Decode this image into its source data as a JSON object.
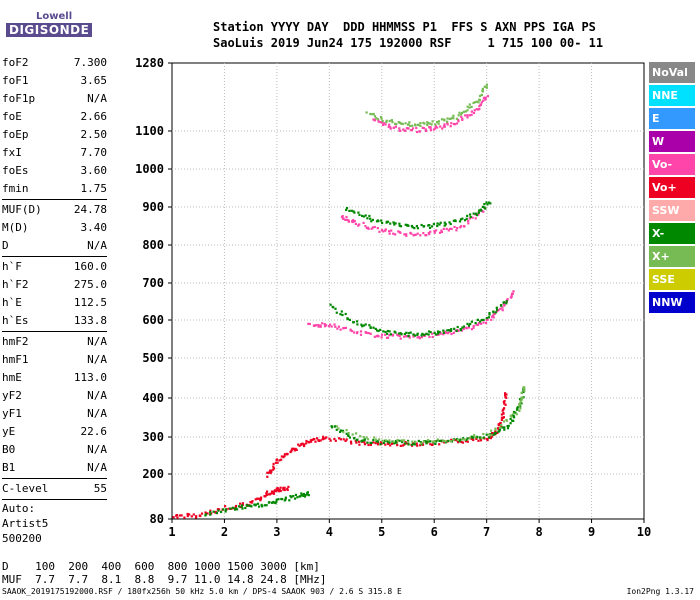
{
  "logo": {
    "line1": "Lowell",
    "line2": "DIGISONDE"
  },
  "header": {
    "line1": "Station YYYY DAY  DDD HHMMSS P1  FFS S AXN PPS IGA PS",
    "line2": "SaoLuis 2019 Jun24 175 192000 RSF     1 715 100 00- 11"
  },
  "params": [
    {
      "k": "foF2",
      "v": "7.300"
    },
    {
      "k": "foF1",
      "v": "3.65"
    },
    {
      "k": "foF1p",
      "v": "N/A"
    },
    {
      "k": "foE",
      "v": "2.66"
    },
    {
      "k": "foEp",
      "v": "2.50"
    },
    {
      "k": "fxI",
      "v": "7.70"
    },
    {
      "k": "foEs",
      "v": "3.60"
    },
    {
      "k": "fmin",
      "v": "1.75"
    },
    {
      "k": "MUF(D)",
      "v": "24.78"
    },
    {
      "k": "M(D)",
      "v": "3.40"
    },
    {
      "k": "D",
      "v": "N/A"
    },
    {
      "k": "h`F",
      "v": "160.0"
    },
    {
      "k": "h`F2",
      "v": "275.0"
    },
    {
      "k": "h`E",
      "v": "112.5"
    },
    {
      "k": "h`Es",
      "v": "133.8"
    },
    {
      "k": "hmF2",
      "v": "N/A"
    },
    {
      "k": "hmF1",
      "v": "N/A"
    },
    {
      "k": "hmE",
      "v": "113.0"
    },
    {
      "k": "yF2",
      "v": "N/A"
    },
    {
      "k": "yF1",
      "v": "N/A"
    },
    {
      "k": "yE",
      "v": "22.6"
    },
    {
      "k": "B0",
      "v": "N/A"
    },
    {
      "k": "B1",
      "v": "N/A"
    },
    {
      "k": "C-level",
      "v": "55"
    }
  ],
  "auto": {
    "l1": "Auto:",
    "l2": "Artist5",
    "l3": "500200"
  },
  "legend": [
    {
      "label": "NoVal",
      "color": "#888888"
    },
    {
      "label": "NNE",
      "color": "#00e0ff"
    },
    {
      "label": "E",
      "color": "#3399ff"
    },
    {
      "label": "W",
      "color": "#aa00aa"
    },
    {
      "label": "Vo-",
      "color": "#ff44aa"
    },
    {
      "label": "Vo+",
      "color": "#ee0022"
    },
    {
      "label": "SSW",
      "color": "#ffaaaa"
    },
    {
      "label": "X-",
      "color": "#008800"
    },
    {
      "label": "X+",
      "color": "#77bb55"
    },
    {
      "label": "SSE",
      "color": "#cccc00"
    },
    {
      "label": "NNW",
      "color": "#0000cc"
    }
  ],
  "bottom": {
    "l1": "D    100  200  400  600  800 1000 1500 3000 [km]",
    "l2": "MUF  7.7  7.7  8.1  8.8  9.7 11.0 14.8 24.8 [MHz]"
  },
  "footer": "SAAOK_2019175192000.RSF / 180fx256h 50 kHz 5.0 km / DPS-4 SAAOK 903 / 2.6 S 315.8 E",
  "version": "Ion2Png 1.3.17",
  "chart_data": {
    "type": "scatter",
    "title": "",
    "xlabel": "",
    "ylabel": "",
    "xlim": [
      1,
      10
    ],
    "ylim": [
      80,
      1280
    ],
    "x_ticks": [
      1,
      2,
      3,
      4,
      5,
      6,
      7,
      8,
      9,
      10
    ],
    "y_ticks": [
      80,
      200,
      300,
      400,
      500,
      600,
      700,
      800,
      900,
      1000,
      1100,
      1280
    ],
    "grid": true,
    "legend_placement": "right",
    "traces": [
      {
        "name": "F2 O-trace",
        "color": "#ee0022",
        "points": [
          [
            3.9,
            300
          ],
          [
            4.5,
            288
          ],
          [
            5,
            284
          ],
          [
            5.5,
            284
          ],
          [
            6,
            286
          ],
          [
            6.5,
            292
          ],
          [
            7,
            300
          ],
          [
            7.2,
            320
          ],
          [
            7.3,
            360
          ],
          [
            7.35,
            420
          ]
        ]
      },
      {
        "name": "F2 X-trace",
        "color": "#008800",
        "points": [
          [
            4,
            335
          ],
          [
            4.5,
            295
          ],
          [
            5,
            288
          ],
          [
            5.5,
            287
          ],
          [
            6,
            289
          ],
          [
            6.5,
            296
          ],
          [
            7,
            305
          ],
          [
            7.4,
            330
          ],
          [
            7.6,
            380
          ],
          [
            7.7,
            430
          ]
        ]
      },
      {
        "name": "F2 X+ trace",
        "color": "#77bb55",
        "points": [
          [
            4.1,
            325
          ],
          [
            5,
            290
          ],
          [
            6,
            291
          ],
          [
            7,
            307
          ],
          [
            7.6,
            370
          ],
          [
            7.7,
            435
          ]
        ]
      },
      {
        "name": "F low trace",
        "color": "#ee0022",
        "points": [
          [
            2.8,
            200
          ],
          [
            3.0,
            240
          ],
          [
            3.3,
            270
          ],
          [
            3.6,
            290
          ],
          [
            3.9,
            302
          ]
        ]
      },
      {
        "name": "E trace",
        "color": "#ee0022",
        "points": [
          [
            1,
            90
          ],
          [
            1.5,
            92
          ],
          [
            2,
            112
          ],
          [
            2.5,
            125
          ],
          [
            2.8,
            150
          ],
          [
            3,
            160
          ],
          [
            3.2,
            165
          ]
        ]
      },
      {
        "name": "E X trace",
        "color": "#008800",
        "points": [
          [
            1.6,
            95
          ],
          [
            2.2,
            112
          ],
          [
            2.6,
            118
          ],
          [
            3.0,
            130
          ],
          [
            3.4,
            145
          ],
          [
            3.6,
            150
          ]
        ]
      },
      {
        "name": "2F O-trace",
        "color": "#ff44aa",
        "points": [
          [
            3.6,
            590
          ],
          [
            4,
            590
          ],
          [
            4.5,
            570
          ],
          [
            5,
            560
          ],
          [
            5.5,
            558
          ],
          [
            6,
            562
          ],
          [
            6.5,
            575
          ],
          [
            7,
            600
          ],
          [
            7.3,
            640
          ],
          [
            7.5,
            680
          ]
        ]
      },
      {
        "name": "2F X-trace",
        "color": "#008800",
        "points": [
          [
            4,
            640
          ],
          [
            4.5,
            595
          ],
          [
            5,
            570
          ],
          [
            5.5,
            565
          ],
          [
            6,
            568
          ],
          [
            6.5,
            582
          ],
          [
            7,
            610
          ],
          [
            7.4,
            660
          ]
        ]
      },
      {
        "name": "3F O-trace",
        "color": "#ff44aa",
        "points": [
          [
            4.2,
            880
          ],
          [
            4.5,
            860
          ],
          [
            5,
            840
          ],
          [
            5.5,
            830
          ],
          [
            6,
            835
          ],
          [
            6.5,
            850
          ],
          [
            7,
            900
          ]
        ]
      },
      {
        "name": "3F X-trace",
        "color": "#008800",
        "points": [
          [
            4.3,
            900
          ],
          [
            4.8,
            870
          ],
          [
            5.3,
            855
          ],
          [
            5.8,
            850
          ],
          [
            6.3,
            860
          ],
          [
            6.8,
            885
          ],
          [
            7.05,
            920
          ]
        ]
      },
      {
        "name": "4F O-trace",
        "color": "#ff44aa",
        "points": [
          [
            4.8,
            1135
          ],
          [
            5.2,
            1110
          ],
          [
            5.6,
            1105
          ],
          [
            6,
            1110
          ],
          [
            6.4,
            1125
          ],
          [
            6.8,
            1160
          ],
          [
            7,
            1200
          ]
        ]
      },
      {
        "name": "4F X-trace",
        "color": "#77bb55",
        "points": [
          [
            4.7,
            1150
          ],
          [
            5.2,
            1125
          ],
          [
            5.6,
            1120
          ],
          [
            6,
            1125
          ],
          [
            6.4,
            1140
          ],
          [
            6.8,
            1180
          ],
          [
            7,
            1230
          ]
        ]
      }
    ]
  }
}
